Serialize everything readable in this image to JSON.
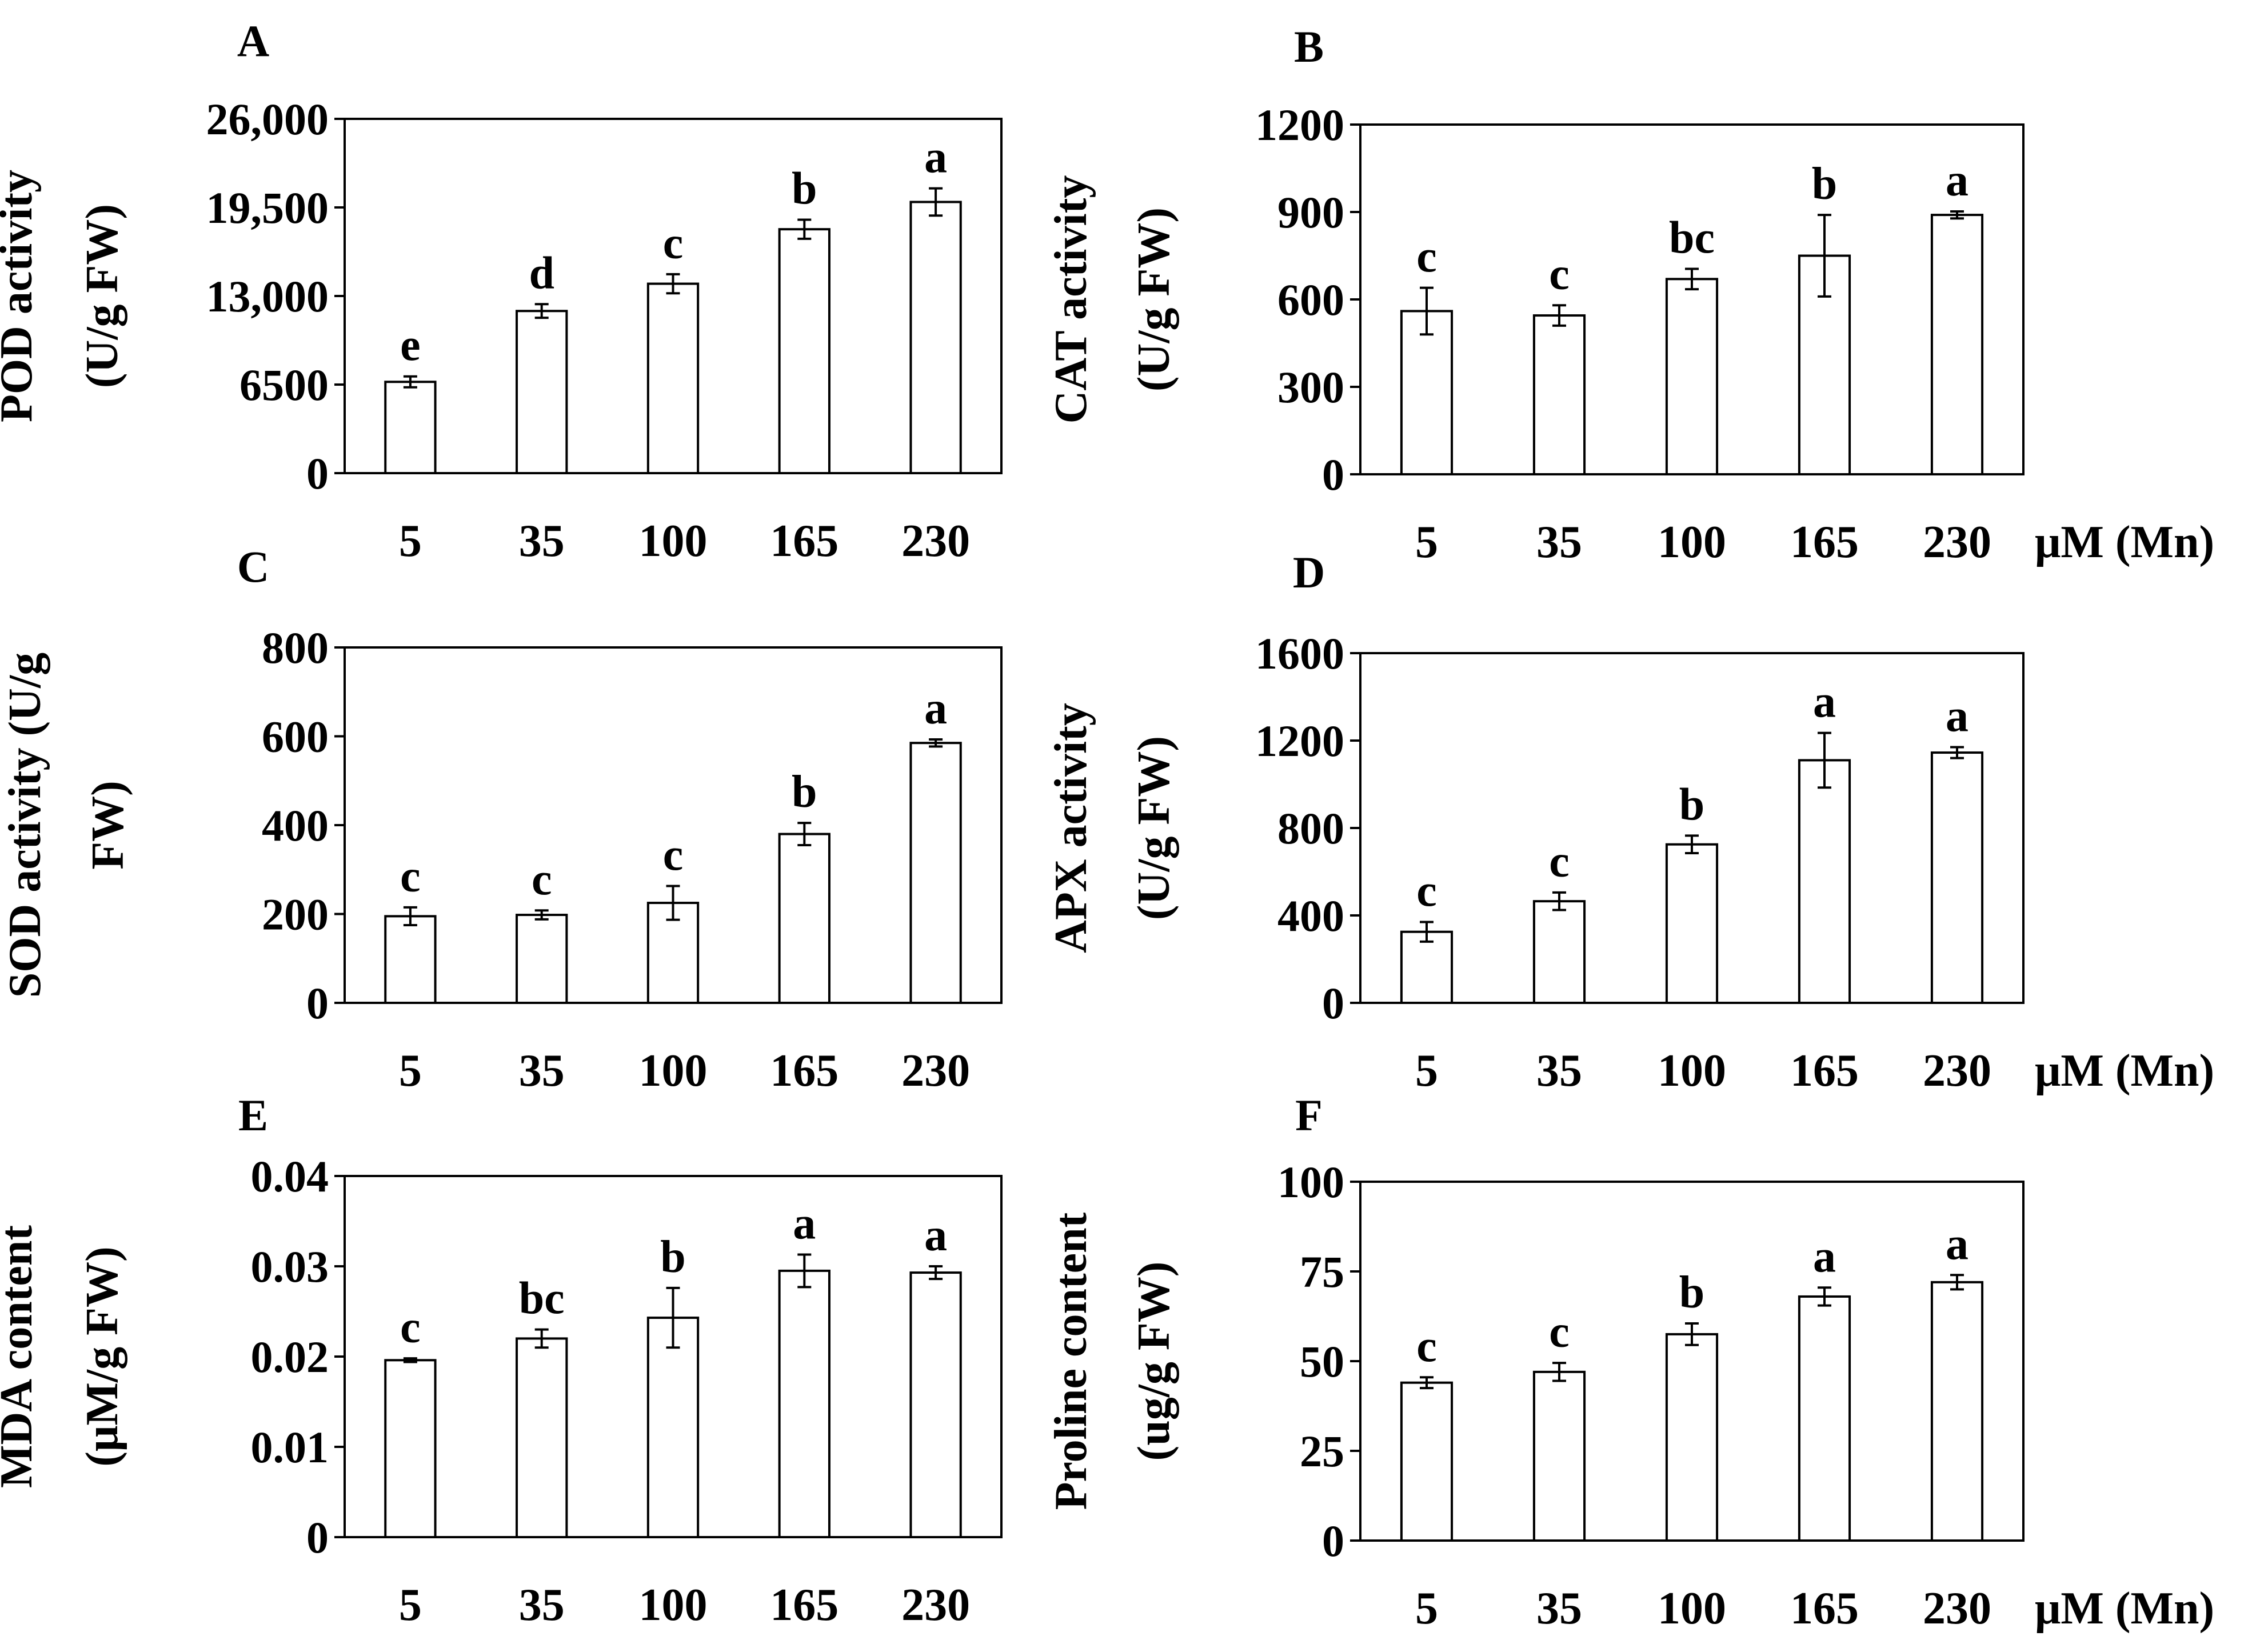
{
  "figure": {
    "unit_label": "μM (Mn)"
  },
  "chart_data": [
    {
      "panel": "A",
      "type": "bar",
      "ylabel": [
        "POD activity",
        "(U/g FW)"
      ],
      "categories": [
        "5",
        "35",
        "100",
        "165",
        "230"
      ],
      "yticks": [
        0,
        6500,
        13000,
        19500,
        26000
      ],
      "ytick_labels": [
        "0",
        "6500",
        "13,000",
        "19,500",
        "26,000"
      ],
      "ylim": [
        0,
        26000
      ],
      "values": [
        6700,
        11900,
        13900,
        17900,
        19900
      ],
      "errors": [
        400,
        500,
        700,
        700,
        1000
      ],
      "letters": [
        "e",
        "d",
        "c",
        "b",
        "a"
      ],
      "show_unit": false
    },
    {
      "panel": "B",
      "type": "bar",
      "ylabel": [
        "CAT activity",
        "(U/g FW)"
      ],
      "categories": [
        "5",
        "35",
        "100",
        "165",
        "230"
      ],
      "yticks": [
        0,
        300,
        600,
        900,
        1200
      ],
      "ytick_labels": [
        "0",
        "300",
        "600",
        "900",
        "1200"
      ],
      "ylim": [
        0,
        1200
      ],
      "values": [
        560,
        545,
        670,
        750,
        890
      ],
      "errors": [
        80,
        35,
        35,
        140,
        12
      ],
      "letters": [
        "c",
        "c",
        "bc",
        "b",
        "a"
      ],
      "show_unit": true
    },
    {
      "panel": "C",
      "type": "bar",
      "ylabel": [
        "SOD activity (U/g",
        "FW)"
      ],
      "categories": [
        "5",
        "35",
        "100",
        "165",
        "230"
      ],
      "yticks": [
        0,
        200,
        400,
        600,
        800
      ],
      "ytick_labels": [
        "0",
        "200",
        "400",
        "600",
        "800"
      ],
      "ylim": [
        0,
        800
      ],
      "values": [
        195,
        198,
        225,
        380,
        585
      ],
      "errors": [
        20,
        10,
        38,
        25,
        8
      ],
      "letters": [
        "c",
        "c",
        "c",
        "b",
        "a"
      ],
      "show_unit": false
    },
    {
      "panel": "D",
      "type": "bar",
      "ylabel": [
        "APX activity",
        "(U/g FW)"
      ],
      "categories": [
        "5",
        "35",
        "100",
        "165",
        "230"
      ],
      "yticks": [
        0,
        400,
        800,
        1200,
        1600
      ],
      "ytick_labels": [
        "0",
        "400",
        "800",
        "1200",
        "1600"
      ],
      "ylim": [
        0,
        1600
      ],
      "values": [
        325,
        465,
        725,
        1110,
        1145
      ],
      "errors": [
        45,
        40,
        40,
        125,
        25
      ],
      "letters": [
        "c",
        "c",
        "b",
        "a",
        "a"
      ],
      "show_unit": true
    },
    {
      "panel": "E",
      "type": "bar",
      "ylabel": [
        "MDA content",
        "(μM/g FW)"
      ],
      "categories": [
        "5",
        "35",
        "100",
        "165",
        "230"
      ],
      "yticks": [
        0,
        0.01,
        0.02,
        0.03,
        0.04
      ],
      "ytick_labels": [
        "0",
        "0.01",
        "0.02",
        "0.03",
        "0.04"
      ],
      "ylim": [
        0,
        0.04
      ],
      "values": [
        0.0196,
        0.022,
        0.0243,
        0.0295,
        0.0293
      ],
      "errors": [
        0.0002,
        0.001,
        0.0033,
        0.0018,
        0.0007
      ],
      "letters": [
        "c",
        "bc",
        "b",
        "a",
        "a"
      ],
      "show_unit": false
    },
    {
      "panel": "F",
      "type": "bar",
      "ylabel": [
        "Proline content",
        "(ug/g FW)"
      ],
      "categories": [
        "5",
        "35",
        "100",
        "165",
        "230"
      ],
      "yticks": [
        0,
        25,
        50,
        75,
        100
      ],
      "ytick_labels": [
        "0",
        "25",
        "50",
        "75",
        "100"
      ],
      "ylim": [
        0,
        100
      ],
      "values": [
        44,
        47,
        57.5,
        68,
        72
      ],
      "errors": [
        1.5,
        2.5,
        3,
        2.5,
        2
      ],
      "letters": [
        "c",
        "c",
        "b",
        "a",
        "a"
      ],
      "show_unit": true
    }
  ]
}
